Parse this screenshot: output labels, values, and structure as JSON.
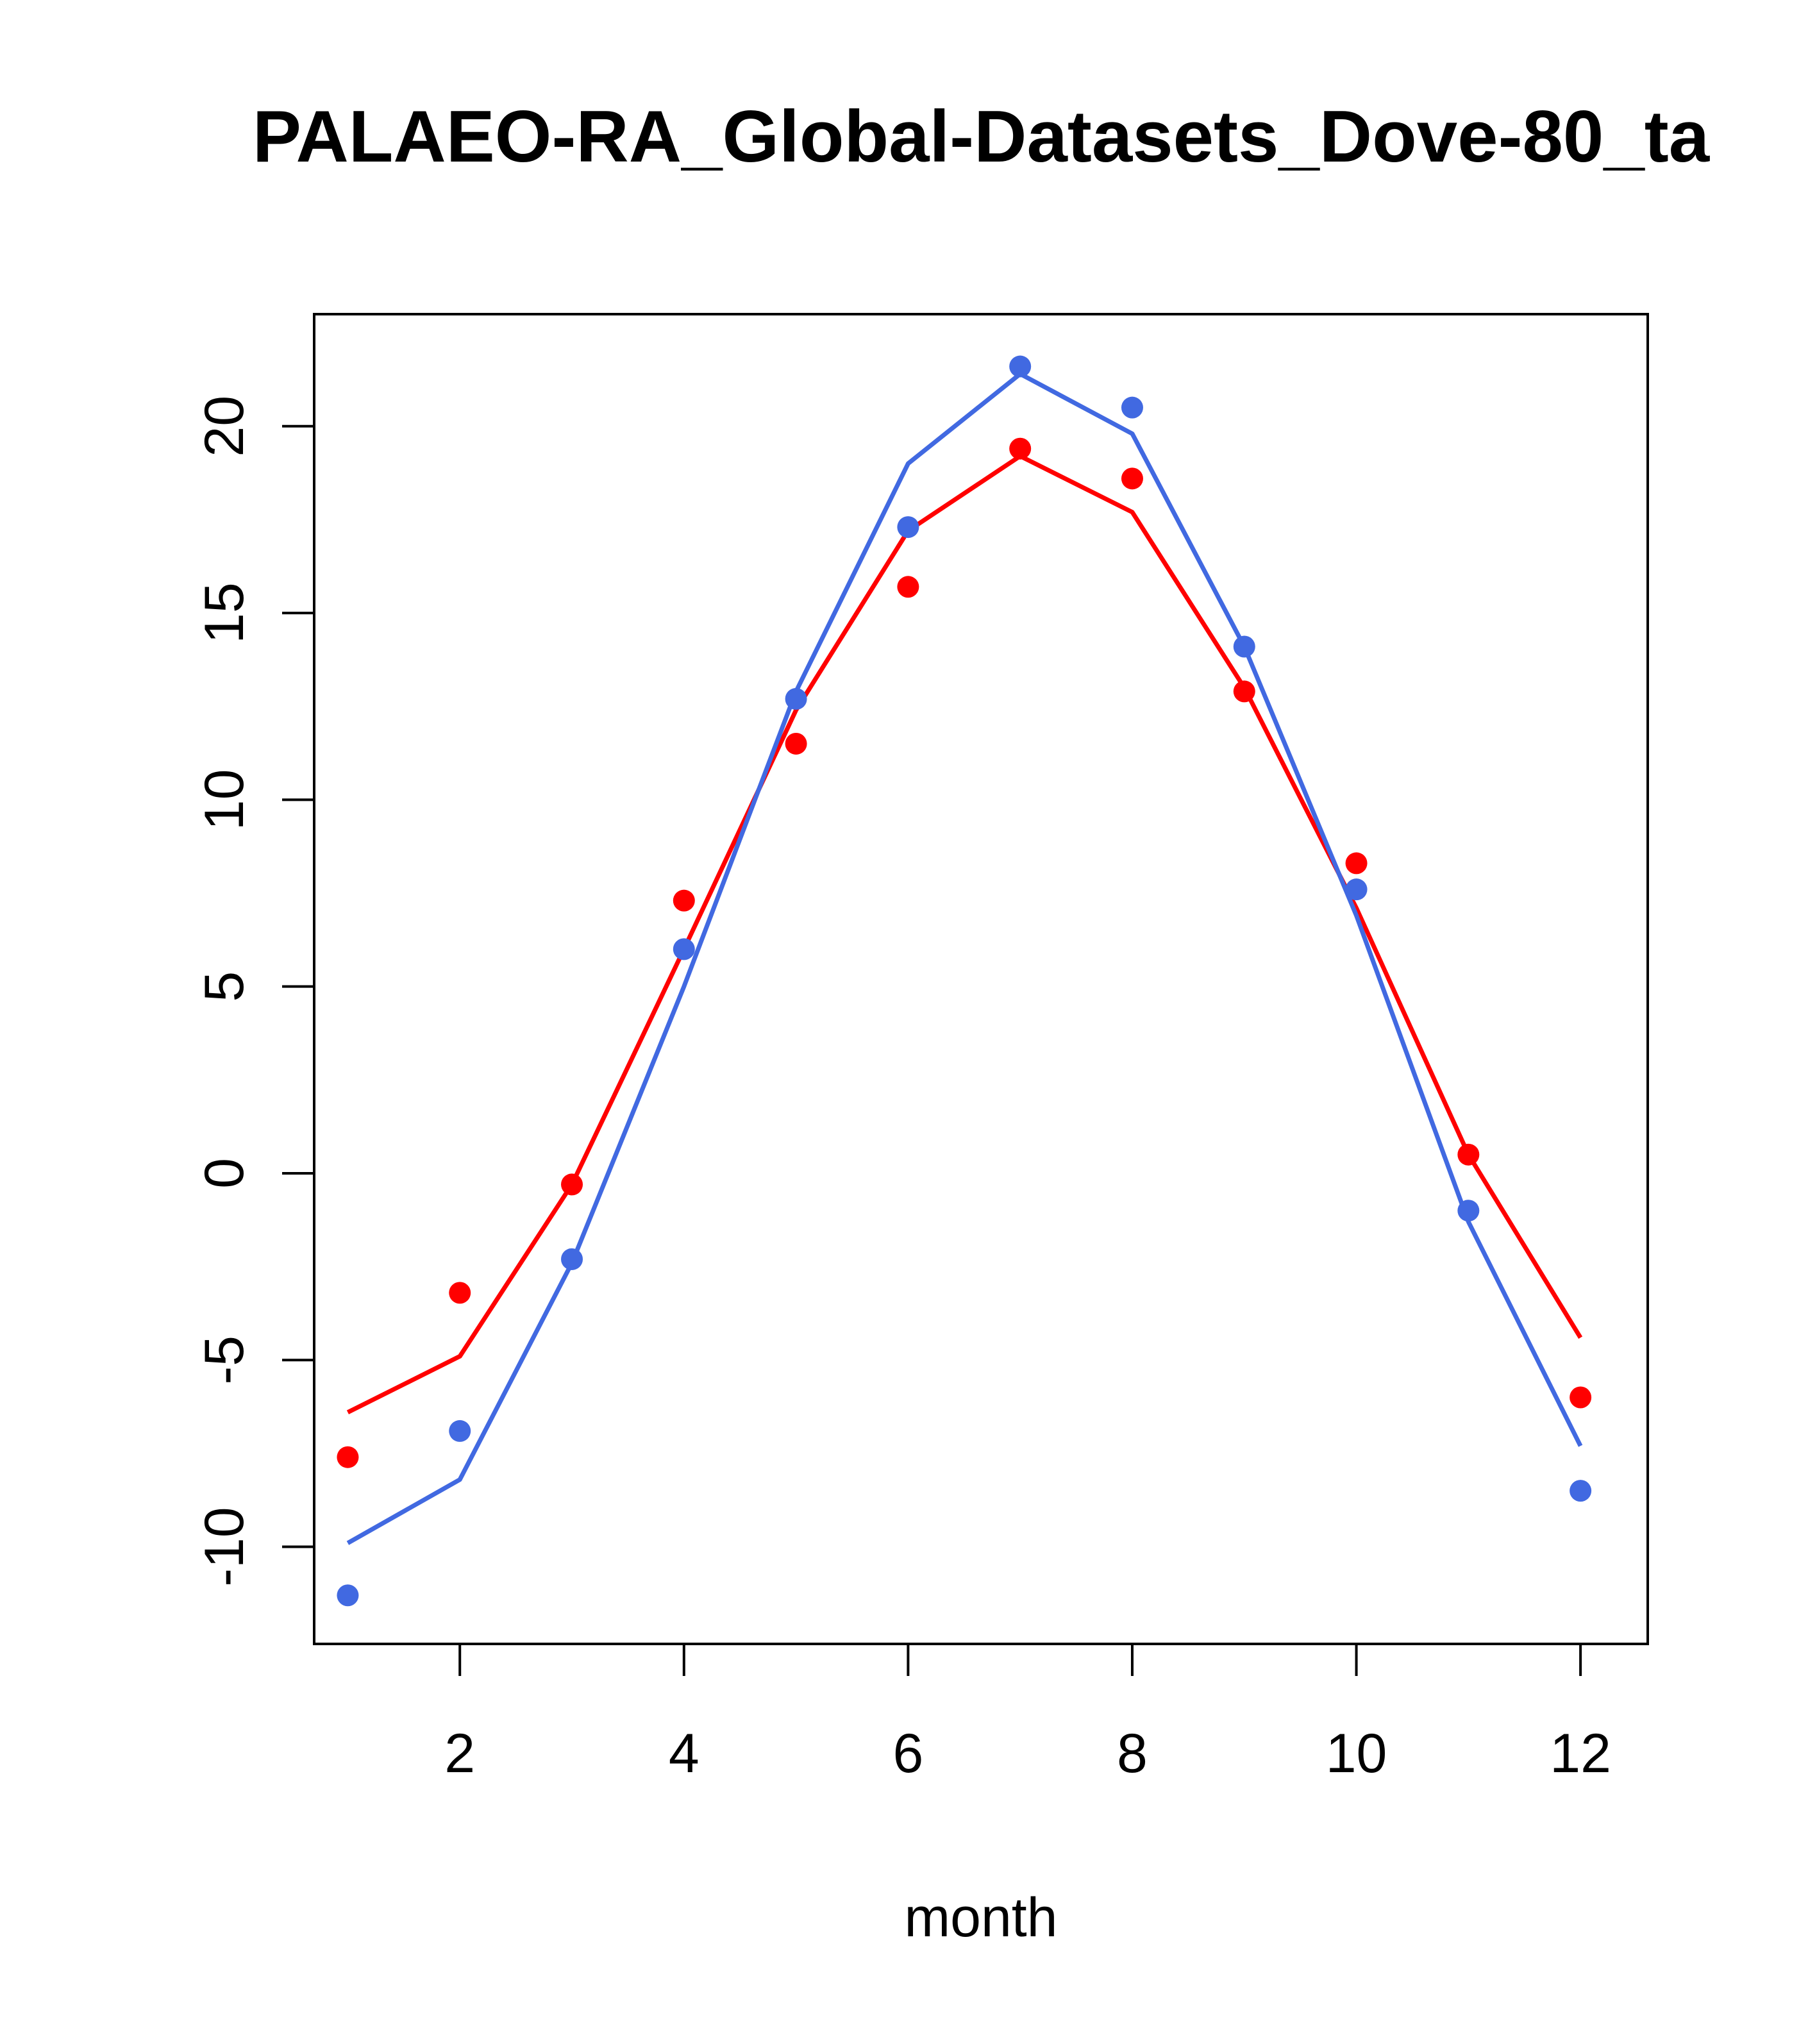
{
  "chart_data": {
    "type": "line",
    "title": "PALAEO-RA_Global-Datasets_Dove-80_ta",
    "xlabel": "month",
    "ylabel": "",
    "xlim": [
      0.7,
      12.6
    ],
    "ylim": [
      -12.6,
      23.0
    ],
    "x_ticks": [
      2,
      4,
      6,
      8,
      10,
      12
    ],
    "x_tick_labels": [
      "2",
      "4",
      "6",
      "8",
      "10",
      "12"
    ],
    "y_ticks": [
      -10,
      -5,
      0,
      5,
      10,
      15,
      20
    ],
    "y_tick_labels": [
      "-10",
      "-5",
      "0",
      "5",
      "10",
      "15",
      "20"
    ],
    "grid": false,
    "legend": "none",
    "x": [
      1,
      2,
      3,
      4,
      5,
      6,
      7,
      8,
      9,
      10,
      11,
      12
    ],
    "series": [
      {
        "color": "#FF0000",
        "points": [
          -7.6,
          -3.2,
          -0.3,
          7.3,
          11.5,
          15.7,
          19.4,
          18.6,
          12.9,
          8.3,
          0.5,
          -6.0
        ],
        "line": [
          -6.4,
          -4.9,
          -0.3,
          6.0,
          12.4,
          17.2,
          19.2,
          17.7,
          13.0,
          7.1,
          0.5,
          -4.4
        ]
      },
      {
        "color": "#4169E1",
        "points": [
          -11.3,
          -6.9,
          -2.3,
          6.0,
          12.7,
          17.3,
          21.6,
          20.5,
          14.1,
          7.6,
          -1.0,
          -8.5
        ],
        "line": [
          -9.9,
          -8.2,
          -2.4,
          5.0,
          12.9,
          19.0,
          21.4,
          19.8,
          14.1,
          6.9,
          -1.3,
          -7.3
        ]
      }
    ]
  }
}
